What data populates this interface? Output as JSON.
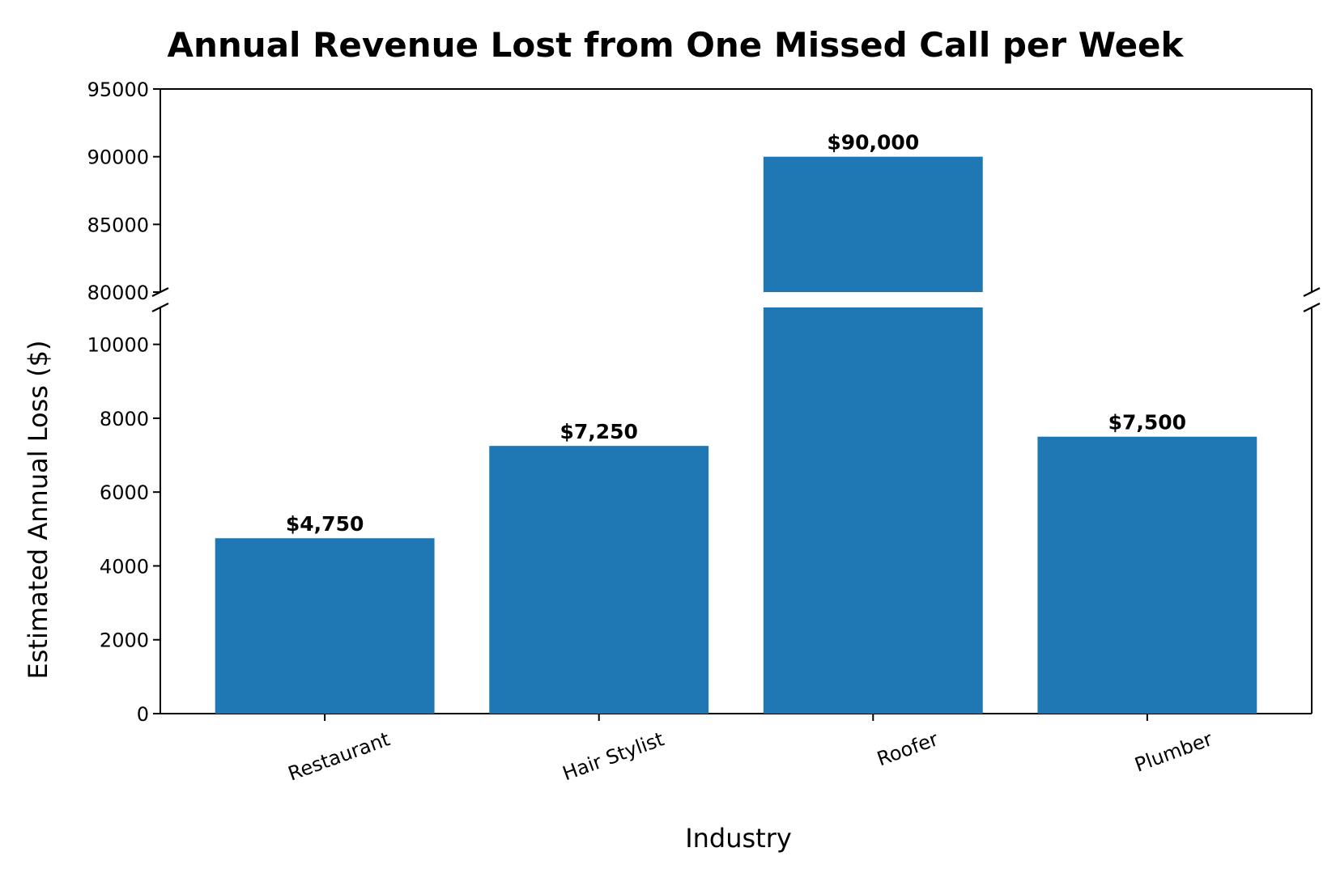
{
  "chart_data": {
    "type": "bar",
    "title": "Annual Revenue Lost from One Missed Call per Week",
    "xlabel": "Industry",
    "ylabel": "Estimated Annual Loss ($)",
    "categories": [
      "Restaurant",
      "Hair Stylist",
      "Roofer",
      "Plumber"
    ],
    "values": [
      4750,
      7250,
      90000,
      7500
    ],
    "value_labels": [
      "$4,750",
      "$7,250",
      "$90,000",
      "$7,500"
    ],
    "bar_color": "#1f77b4",
    "broken_axis": true,
    "lower_ylim": [
      0,
      11000
    ],
    "upper_ylim": [
      80000,
      95000
    ],
    "lower_ticks": [
      0,
      2000,
      4000,
      6000,
      8000,
      10000
    ],
    "upper_ticks": [
      80000,
      85000,
      90000,
      95000
    ],
    "grid": false,
    "xtick_rotation_deg": -20
  }
}
